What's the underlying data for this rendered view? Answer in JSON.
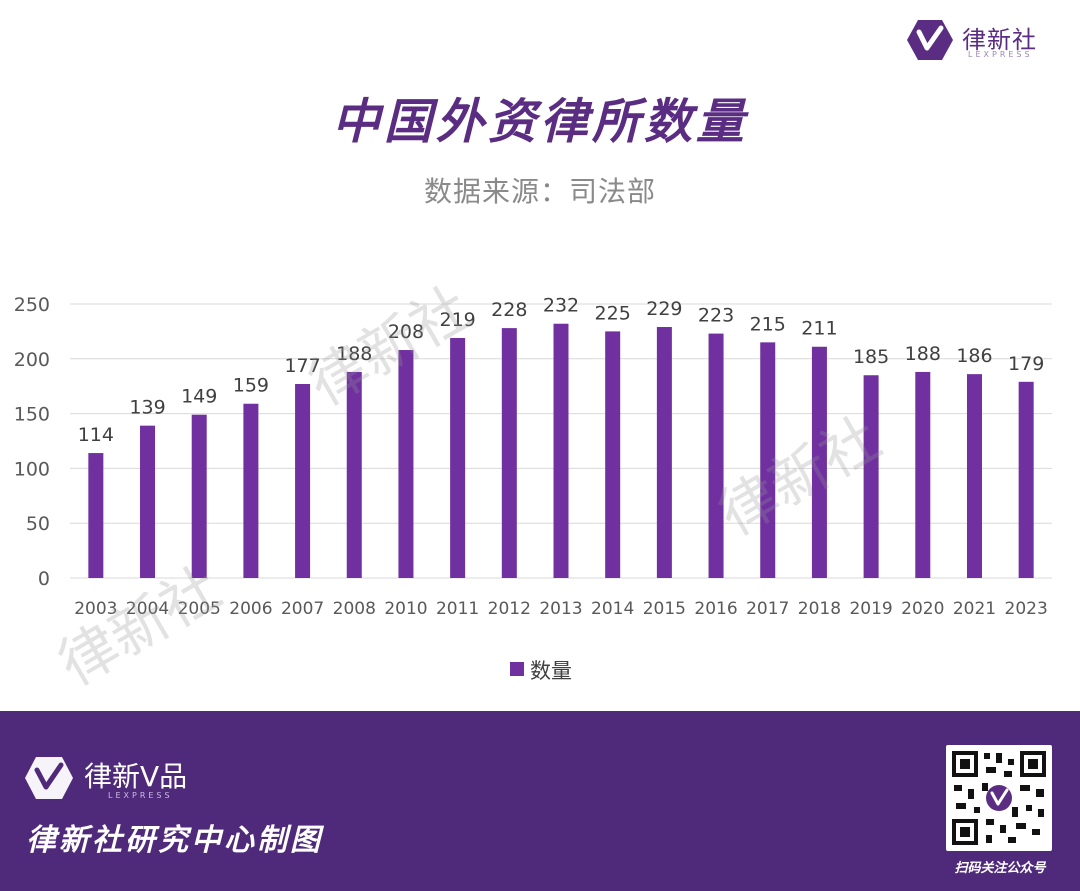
{
  "brand": {
    "name": "律新社",
    "sub": "LEXPRESS",
    "accent": "#5a2d82",
    "bar_color": "#7030a0"
  },
  "header": {
    "title": "中国外资律所数量",
    "subtitle": "数据来源：司法部"
  },
  "watermark_text": "律新社",
  "chart_data": {
    "type": "bar",
    "categories": [
      "2003",
      "2004",
      "2005",
      "2006",
      "2007",
      "2008",
      "2010",
      "2011",
      "2012",
      "2013",
      "2014",
      "2015",
      "2016",
      "2017",
      "2018",
      "2019",
      "2020",
      "2021",
      "2023"
    ],
    "series": [
      {
        "name": "数量",
        "values": [
          114,
          139,
          149,
          159,
          177,
          188,
          208,
          219,
          228,
          232,
          225,
          229,
          223,
          215,
          211,
          185,
          188,
          186,
          179
        ]
      }
    ],
    "title": "",
    "xlabel": "",
    "ylabel": "",
    "ylim": [
      0,
      250
    ],
    "yticks": [
      0,
      50,
      100,
      150,
      200,
      250
    ],
    "grid": true,
    "legend": "bottom"
  },
  "footer": {
    "brand": "律新V品",
    "brand_sub": "LEXPRESS",
    "credit": "律新社研究中心制图",
    "qr_label": "扫码关注公众号"
  }
}
